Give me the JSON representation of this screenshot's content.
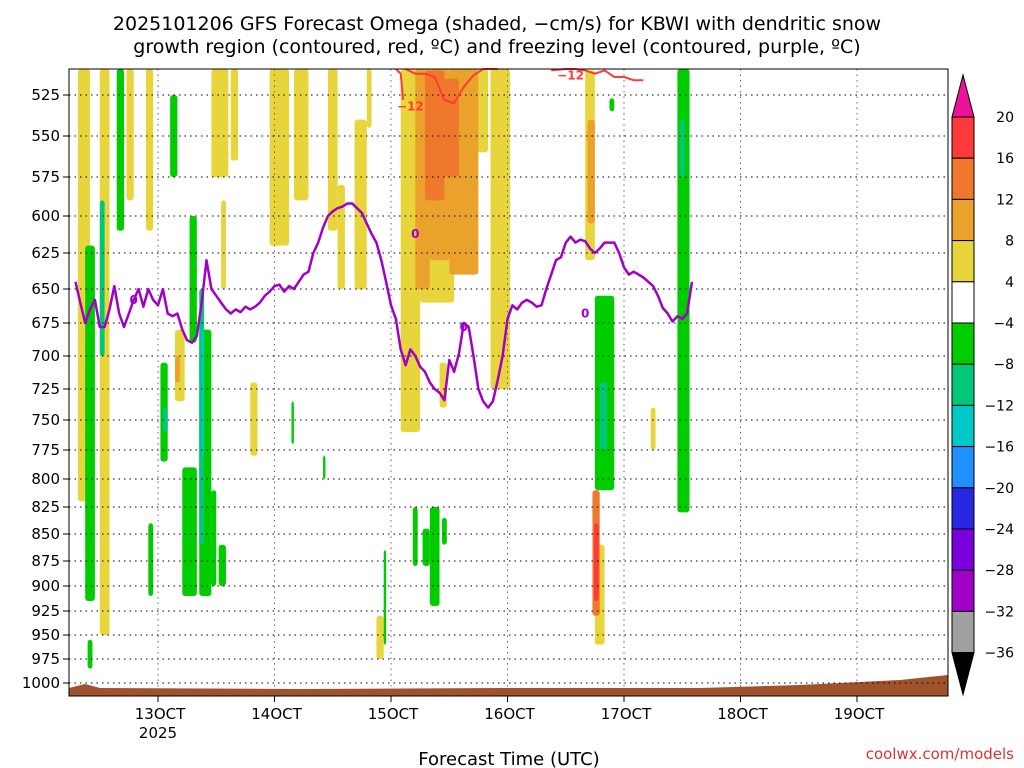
{
  "chart_data": {
    "type": "heatmap",
    "title_line1": "2025101206 GFS Forecast Omega (shaded, −cm/s) for KBWI with dendritic snow",
    "title_line2": "growth region (contoured, red, ºC) and freezing level (contoured, purple, ºC)",
    "xlabel": "Forecast Time (UTC)",
    "credit": "coolwx.com/models",
    "x_ticks": [
      "13OCT",
      "14OCT",
      "15OCT",
      "16OCT",
      "17OCT",
      "18OCT",
      "19OCT"
    ],
    "x_tick_year": "2025",
    "y_ticks": [
      525,
      550,
      575,
      600,
      625,
      650,
      675,
      700,
      725,
      750,
      775,
      800,
      825,
      850,
      875,
      900,
      925,
      950,
      975,
      1000
    ],
    "y_axis": "pressure (hPa), inverted",
    "x_range_hours_from_13OCT00Z": [
      -17,
      110
    ],
    "colorbar": {
      "tick_labels": [
        "20",
        "16",
        "12",
        "8",
        "4",
        "−4",
        "−8",
        "−12",
        "−16",
        "−20",
        "−24",
        "−28",
        "−32",
        "−36"
      ],
      "bins": [
        {
          "range": "> 20",
          "color": "#ee1199"
        },
        {
          "range": "16 to 20",
          "color": "#ff3a3a"
        },
        {
          "range": "12 to 16",
          "color": "#f0782c"
        },
        {
          "range": "8 to 12",
          "color": "#eba22c"
        },
        {
          "range": "4 to 8",
          "color": "#e8d53b"
        },
        {
          "range": "-4 to 4",
          "color": "#ffffff"
        },
        {
          "range": "-8 to -4",
          "color": "#00cc00"
        },
        {
          "range": "-12 to -8",
          "color": "#00c878"
        },
        {
          "range": "-16 to -12",
          "color": "#00c8c8"
        },
        {
          "range": "-20 to -16",
          "color": "#1e90ff"
        },
        {
          "range": "-24 to -20",
          "color": "#2828e0"
        },
        {
          "range": "-28 to -24",
          "color": "#7a00dc"
        },
        {
          "range": "-32 to -28",
          "color": "#a000c8"
        },
        {
          "range": "-36 to -32",
          "color": "#a0a0a0"
        },
        {
          "range": "< -36",
          "color": "#000000"
        }
      ]
    },
    "freezing_level": {
      "color": "#a000c8",
      "label": "0",
      "points": [
        [
          -17,
          645
        ],
        [
          -16,
          660
        ],
        [
          -15,
          675
        ],
        [
          -14,
          665
        ],
        [
          -13,
          658
        ],
        [
          -12,
          678
        ],
        [
          -11,
          678
        ],
        [
          -10,
          665
        ],
        [
          -9,
          648
        ],
        [
          -8,
          668
        ],
        [
          -7,
          678
        ],
        [
          -6,
          668
        ],
        [
          -5,
          658
        ],
        [
          -4,
          650
        ],
        [
          -3,
          663
        ],
        [
          -2,
          650
        ],
        [
          -1,
          658
        ],
        [
          0,
          662
        ],
        [
          1,
          650
        ],
        [
          2,
          668
        ],
        [
          3,
          670
        ],
        [
          4,
          668
        ],
        [
          5,
          680
        ],
        [
          6,
          688
        ],
        [
          7,
          690
        ],
        [
          8,
          685
        ],
        [
          9,
          660
        ],
        [
          10,
          630
        ],
        [
          11,
          650
        ],
        [
          12,
          655
        ],
        [
          13,
          660
        ],
        [
          14,
          665
        ],
        [
          15,
          668
        ],
        [
          16,
          665
        ],
        [
          17,
          667
        ],
        [
          18,
          663
        ],
        [
          19,
          665
        ],
        [
          20,
          663
        ],
        [
          21,
          660
        ],
        [
          22,
          655
        ],
        [
          23,
          652
        ],
        [
          24,
          648
        ],
        [
          25,
          647
        ],
        [
          26,
          652
        ],
        [
          27,
          648
        ],
        [
          28,
          650
        ],
        [
          29,
          645
        ],
        [
          30,
          640
        ],
        [
          31,
          638
        ],
        [
          32,
          625
        ],
        [
          33,
          618
        ],
        [
          34,
          608
        ],
        [
          35,
          600
        ],
        [
          36,
          597
        ],
        [
          37,
          595
        ],
        [
          38,
          594
        ],
        [
          39,
          592
        ],
        [
          40,
          592
        ],
        [
          41,
          595
        ],
        [
          42,
          598
        ],
        [
          43,
          605
        ],
        [
          44,
          612
        ],
        [
          45,
          618
        ],
        [
          46,
          630
        ],
        [
          47,
          645
        ],
        [
          48,
          662
        ],
        [
          49,
          672
        ],
        [
          50,
          695
        ],
        [
          51,
          707
        ],
        [
          52,
          695
        ],
        [
          53,
          700
        ],
        [
          54,
          708
        ],
        [
          55,
          712
        ],
        [
          56,
          720
        ],
        [
          57,
          725
        ],
        [
          58,
          728
        ],
        [
          59,
          734
        ],
        [
          60,
          703
        ],
        [
          61,
          712
        ],
        [
          62,
          698
        ],
        [
          63,
          675
        ],
        [
          64,
          678
        ],
        [
          65,
          700
        ],
        [
          66,
          725
        ],
        [
          67,
          735
        ],
        [
          68,
          740
        ],
        [
          69,
          735
        ],
        [
          70,
          718
        ],
        [
          71,
          700
        ],
        [
          72,
          672
        ],
        [
          73,
          662
        ],
        [
          74,
          665
        ],
        [
          75,
          660
        ],
        [
          76,
          658
        ],
        [
          77,
          660
        ],
        [
          78,
          663
        ],
        [
          79,
          662
        ],
        [
          80,
          650
        ],
        [
          81,
          640
        ],
        [
          82,
          630
        ],
        [
          83,
          628
        ],
        [
          84,
          618
        ],
        [
          85,
          614
        ],
        [
          86,
          618
        ],
        [
          87,
          616
        ],
        [
          88,
          617
        ],
        [
          89,
          622
        ],
        [
          90,
          625
        ],
        [
          91,
          622
        ],
        [
          92,
          618
        ],
        [
          93,
          618
        ],
        [
          94,
          618
        ],
        [
          95,
          625
        ],
        [
          96,
          635
        ],
        [
          97,
          640
        ],
        [
          98,
          638
        ],
        [
          99,
          640
        ],
        [
          100,
          642
        ],
        [
          101,
          645
        ],
        [
          102,
          648
        ],
        [
          103,
          655
        ],
        [
          104,
          664
        ],
        [
          105,
          668
        ],
        [
          106,
          674
        ],
        [
          107,
          670
        ],
        [
          108,
          672
        ],
        [
          109,
          668
        ],
        [
          110,
          645
        ]
      ]
    },
    "dgz_contours": {
      "color": "#ff3a3a",
      "label": "−12",
      "lines": [
        [
          [
            49,
            500
          ],
          [
            50,
            512
          ],
          [
            50.5,
            528
          ]
        ],
        [
          [
            51,
            508
          ],
          [
            53,
            512
          ],
          [
            55,
            512
          ],
          [
            57,
            514
          ],
          [
            59,
            528
          ],
          [
            61,
            530
          ],
          [
            63,
            520
          ],
          [
            65,
            513
          ],
          [
            67,
            506
          ],
          [
            70,
            500
          ]
        ],
        [
          [
            81,
            510
          ],
          [
            84,
            508
          ],
          [
            86,
            508
          ],
          [
            88,
            510
          ],
          [
            90,
            512
          ],
          [
            92,
            510
          ],
          [
            94,
            514
          ],
          [
            96,
            514
          ],
          [
            98,
            516
          ],
          [
            100,
            516
          ]
        ]
      ]
    },
    "omega_fill_regions": [
      {
        "bin": "4 to 8",
        "x": [
          -16.5,
          -14
        ],
        "p": [
          505,
          820
        ]
      },
      {
        "bin": "4 to 8",
        "x": [
          -12,
          -10
        ],
        "p": [
          505,
          950
        ]
      },
      {
        "bin": "4 to 8",
        "x": [
          -6.5,
          -5
        ],
        "p": [
          505,
          590
        ]
      },
      {
        "bin": "4 to 8",
        "x": [
          -2.5,
          -1
        ],
        "p": [
          505,
          610
        ]
      },
      {
        "bin": "4 to 8",
        "x": [
          3.5,
          5.5
        ],
        "p": [
          680,
          735
        ]
      },
      {
        "bin": "4 to 8",
        "x": [
          11,
          14.5
        ],
        "p": [
          505,
          575
        ]
      },
      {
        "bin": "4 to 8",
        "x": [
          13,
          14
        ],
        "p": [
          590,
          650
        ]
      },
      {
        "bin": "4 to 8",
        "x": [
          15,
          16.5
        ],
        "p": [
          505,
          565
        ]
      },
      {
        "bin": "4 to 8",
        "x": [
          23,
          27
        ],
        "p": [
          505,
          620
        ]
      },
      {
        "bin": "4 to 8",
        "x": [
          28,
          31
        ],
        "p": [
          505,
          590
        ]
      },
      {
        "bin": "4 to 8",
        "x": [
          19,
          20.5
        ],
        "p": [
          720,
          780
        ]
      },
      {
        "bin": "4 to 8",
        "x": [
          35,
          37
        ],
        "p": [
          505,
          610
        ]
      },
      {
        "bin": "4 to 8",
        "x": [
          40.5,
          43
        ],
        "p": [
          540,
          650
        ]
      },
      {
        "bin": "4 to 8",
        "x": [
          37,
          38.5
        ],
        "p": [
          580,
          650
        ]
      },
      {
        "bin": "4 to 8",
        "x": [
          43,
          44
        ],
        "p": [
          505,
          545
        ]
      },
      {
        "bin": "4 to 8",
        "x": [
          50,
          54
        ],
        "p": [
          505,
          760
        ]
      },
      {
        "bin": "4 to 8",
        "x": [
          54,
          61
        ],
        "p": [
          505,
          660
        ]
      },
      {
        "bin": "4 to 8",
        "x": [
          68.5,
          72.5
        ],
        "p": [
          505,
          725
        ]
      },
      {
        "bin": "4 to 8",
        "x": [
          62,
          68
        ],
        "p": [
          505,
          560
        ]
      },
      {
        "bin": "4 to 8",
        "x": [
          88,
          90
        ],
        "p": [
          510,
          630
        ]
      },
      {
        "bin": "4 to 8",
        "x": [
          90,
          92
        ],
        "p": [
          860,
          960
        ]
      },
      {
        "bin": "4 to 8",
        "x": [
          101.5,
          102.5
        ],
        "p": [
          740,
          775
        ]
      },
      {
        "bin": "4 to 8",
        "x": [
          58,
          59.5
        ],
        "p": [
          705,
          740
        ]
      },
      {
        "bin": "4 to 8",
        "x": [
          45,
          46.5
        ],
        "p": [
          930,
          975
        ]
      },
      {
        "bin": "8 to 12",
        "x": [
          53,
          56
        ],
        "p": [
          505,
          650
        ]
      },
      {
        "bin": "8 to 12",
        "x": [
          56,
          60
        ],
        "p": [
          505,
          630
        ]
      },
      {
        "bin": "8 to 12",
        "x": [
          60,
          66
        ],
        "p": [
          505,
          640
        ]
      },
      {
        "bin": "8 to 12",
        "x": [
          88.5,
          90
        ],
        "p": [
          540,
          605
        ]
      },
      {
        "bin": "8 to 12",
        "x": [
          3.5,
          4.5
        ],
        "p": [
          700,
          720
        ]
      },
      {
        "bin": "12 to 16",
        "x": [
          55,
          59
        ],
        "p": [
          510,
          590
        ]
      },
      {
        "bin": "12 to 16",
        "x": [
          59,
          62
        ],
        "p": [
          515,
          575
        ]
      },
      {
        "bin": "12 to 16",
        "x": [
          89.5,
          91
        ],
        "p": [
          810,
          930
        ]
      },
      {
        "bin": "16 to 20",
        "x": [
          89.8,
          90.8
        ],
        "p": [
          840,
          915
        ]
      },
      {
        "bin": "-8 to -4",
        "x": [
          -15,
          -13
        ],
        "p": [
          620,
          915
        ]
      },
      {
        "bin": "-8 to -4",
        "x": [
          -8.5,
          -7
        ],
        "p": [
          505,
          610
        ]
      },
      {
        "bin": "-8 to -4",
        "x": [
          -2,
          -1
        ],
        "p": [
          840,
          910
        ]
      },
      {
        "bin": "-8 to -4",
        "x": [
          0.5,
          2
        ],
        "p": [
          705,
          785
        ]
      },
      {
        "bin": "-8 to -4",
        "x": [
          2.5,
          4
        ],
        "p": [
          525,
          575
        ]
      },
      {
        "bin": "-8 to -4",
        "x": [
          5,
          8
        ],
        "p": [
          790,
          910
        ]
      },
      {
        "bin": "-8 to -4",
        "x": [
          6.5,
          8
        ],
        "p": [
          600,
          690
        ]
      },
      {
        "bin": "-8 to -4",
        "x": [
          8.5,
          11
        ],
        "p": [
          680,
          910
        ]
      },
      {
        "bin": "-8 to -4",
        "x": [
          11,
          12
        ],
        "p": [
          810,
          900
        ]
      },
      {
        "bin": "-8 to -4",
        "x": [
          12.5,
          14
        ],
        "p": [
          860,
          900
        ]
      },
      {
        "bin": "-8 to -4",
        "x": [
          -14.5,
          -13.5
        ],
        "p": [
          955,
          985
        ]
      },
      {
        "bin": "-8 to -4",
        "x": [
          27.5,
          28
        ],
        "p": [
          735,
          770
        ]
      },
      {
        "bin": "-8 to -4",
        "x": [
          34,
          34.5
        ],
        "p": [
          780,
          800
        ]
      },
      {
        "bin": "-8 to -4",
        "x": [
          46.5,
          47
        ],
        "p": [
          865,
          960
        ]
      },
      {
        "bin": "-8 to -4",
        "x": [
          52.5,
          53.5
        ],
        "p": [
          825,
          880
        ]
      },
      {
        "bin": "-8 to -4",
        "x": [
          54.5,
          56
        ],
        "p": [
          845,
          880
        ]
      },
      {
        "bin": "-8 to -4",
        "x": [
          56,
          58
        ],
        "p": [
          825,
          920
        ]
      },
      {
        "bin": "-8 to -4",
        "x": [
          58.5,
          59.5
        ],
        "p": [
          835,
          860
        ]
      },
      {
        "bin": "-8 to -4",
        "x": [
          90,
          94
        ],
        "p": [
          655,
          810
        ]
      },
      {
        "bin": "-8 to -4",
        "x": [
          107,
          109.5
        ],
        "p": [
          505,
          830
        ]
      },
      {
        "bin": "-8 to -4",
        "x": [
          93,
          94
        ],
        "p": [
          527,
          535
        ]
      },
      {
        "bin": "-12 to -8",
        "x": [
          -12,
          -11
        ],
        "p": [
          590,
          700
        ]
      },
      {
        "bin": "-12 to -8",
        "x": [
          1,
          2
        ],
        "p": [
          740,
          760
        ]
      },
      {
        "bin": "-12 to -8",
        "x": [
          8.5,
          9.5
        ],
        "p": [
          650,
          860
        ]
      },
      {
        "bin": "-12 to -8",
        "x": [
          91,
          92.5
        ],
        "p": [
          720,
          775
        ]
      },
      {
        "bin": "-12 to -8",
        "x": [
          107.5,
          108.5
        ],
        "p": [
          540,
          575
        ]
      },
      {
        "bin": "-16 to -12",
        "x": [
          9,
          9.5
        ],
        "p": [
          680,
          780
        ]
      }
    ],
    "terrain_color": "#a0522d"
  }
}
